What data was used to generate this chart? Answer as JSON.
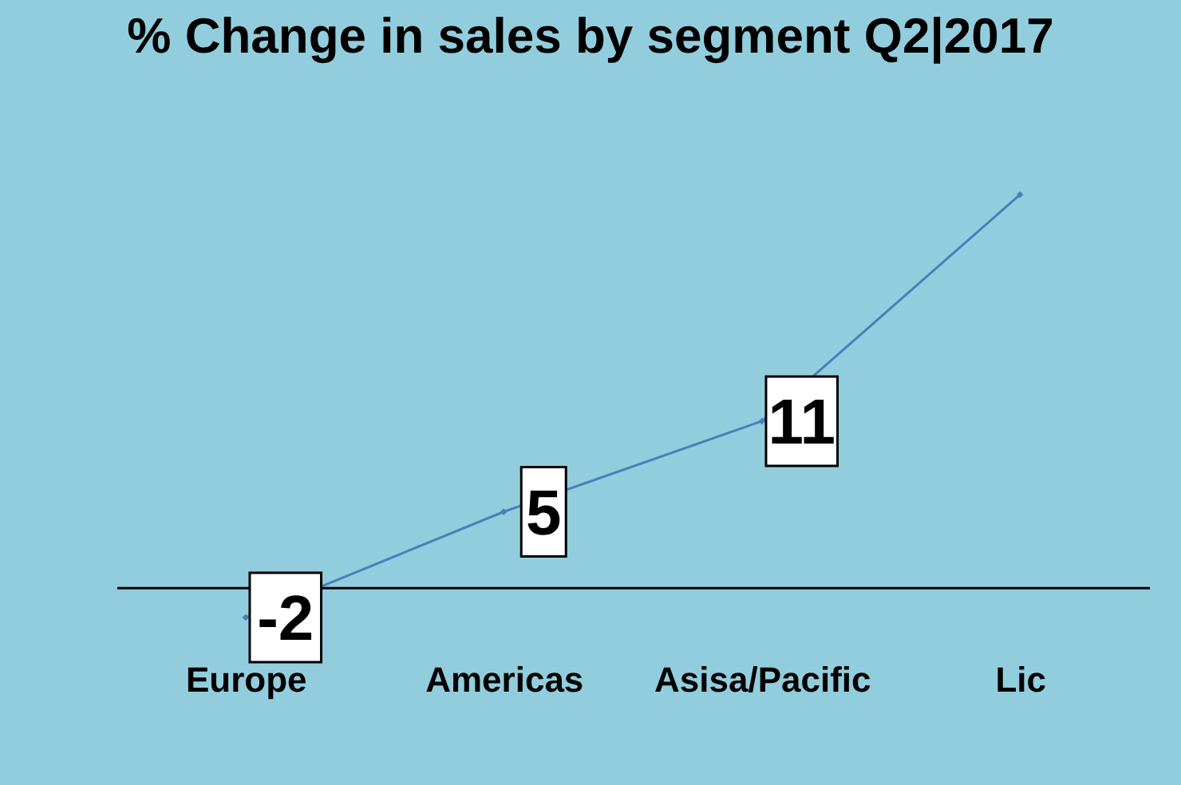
{
  "chart_data": {
    "type": "line",
    "title": "% Change in sales by segment Q2|2017",
    "categories": [
      "Europe",
      "Americas",
      "Asisa/Pacific",
      "Lic"
    ],
    "series": [
      {
        "color": "#4a7ebb",
        "values": [
          -2,
          5,
          11,
          26
        ],
        "value_labels": [
          "-2",
          "5",
          "11",
          null
        ]
      }
    ],
    "marker": "diamond"
  }
}
